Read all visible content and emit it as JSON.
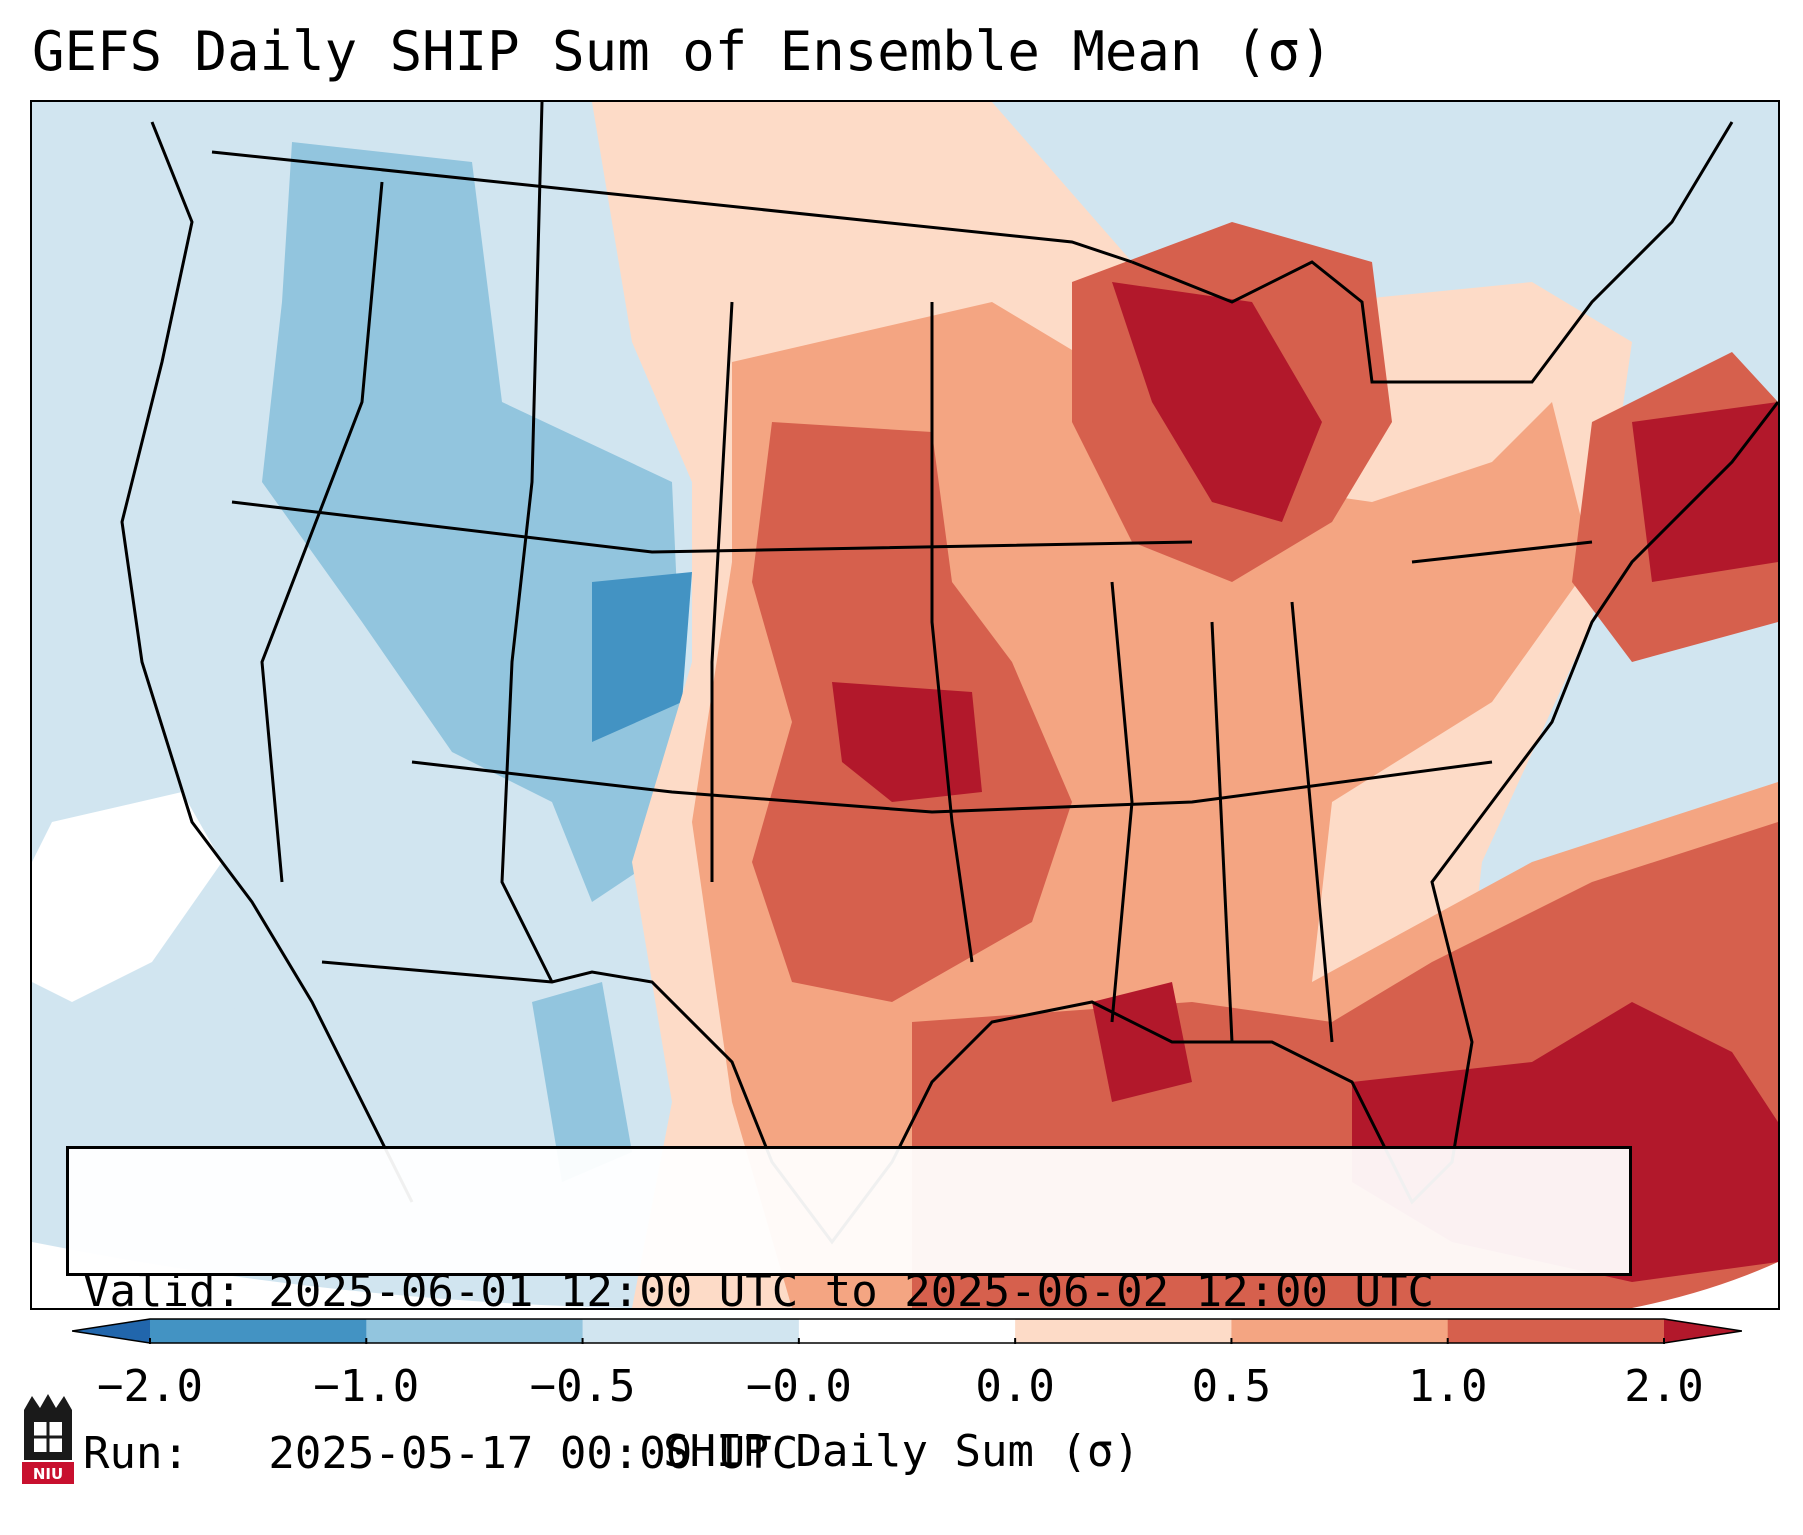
{
  "title": "GEFS Daily SHIP Sum of Ensemble Mean (σ)",
  "info": {
    "valid_line": "Valid: 2025-06-01 12:00 UTC to 2025-06-02 12:00 UTC",
    "run_line": "Run:   2025-05-17 00:00 UTC"
  },
  "colorbar": {
    "label": "SHIP Daily Sum (σ)",
    "ticks": [
      "−2.0",
      "−1.0",
      "−0.5",
      "−0.0",
      "0.0",
      "0.5",
      "1.0",
      "2.0"
    ],
    "bins": [
      {
        "color": "#4393c3",
        "range": "-2.0 to -1.0"
      },
      {
        "color": "#92c5de",
        "range": "-1.0 to -0.5"
      },
      {
        "color": "#d1e5f0",
        "range": "-0.5 to -0.0"
      },
      {
        "color": "#ffffff",
        "range": "-0.0 to 0.0"
      },
      {
        "color": "#fddbc7",
        "range": "0.0 to 0.5"
      },
      {
        "color": "#f4a582",
        "range": "0.5 to 1.0"
      },
      {
        "color": "#d6604d",
        "range": "1.0 to 2.0"
      }
    ],
    "under_color": "#2166ac",
    "over_color": "#b2182b"
  },
  "map": {
    "ocean_color": "#d1e5f0",
    "border_color": "#000000",
    "field_colors": {
      "strong_negative": "#4393c3",
      "negative": "#92c5de",
      "weak_negative": "#d1e5f0",
      "neutral": "#ffffff",
      "weak_positive": "#fddbc7",
      "positive": "#f4a582",
      "strong_positive": "#d6604d",
      "extreme_positive": "#b2182b"
    }
  },
  "logo": {
    "text": "NIU"
  }
}
